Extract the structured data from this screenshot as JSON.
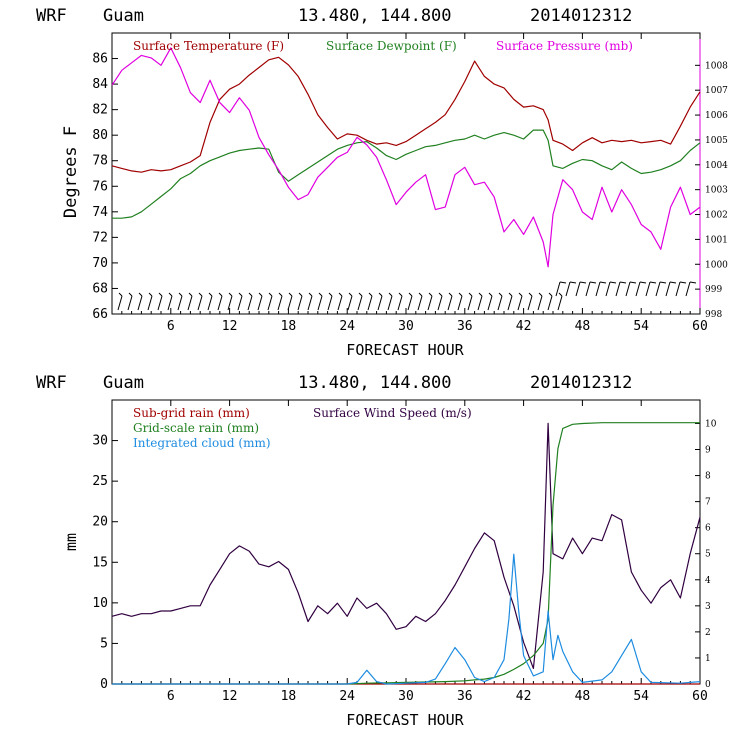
{
  "chart_data": [
    {
      "type": "line",
      "header": {
        "model": "WRF",
        "location": "Guam",
        "coords": "13.480, 144.800",
        "run": "2014012312"
      },
      "xlabel": "FORECAST HOUR",
      "ylabel": "Degrees F",
      "xlim": [
        0,
        60
      ],
      "ylim": [
        66,
        88
      ],
      "y2lim": [
        998,
        1009.3
      ],
      "x_ticks": [
        6,
        12,
        18,
        24,
        30,
        36,
        42,
        48,
        54,
        60
      ],
      "y_ticks": [
        66,
        68,
        70,
        72,
        74,
        76,
        78,
        80,
        82,
        84,
        86
      ],
      "y2_ticks": [
        998,
        999,
        1000,
        1001,
        1002,
        1003,
        1004,
        1005,
        1006,
        1007,
        1008
      ],
      "series": [
        {
          "name": "Surface Temperature (F)",
          "color": "#a00000",
          "axis": "left",
          "x": [
            0,
            1,
            2,
            3,
            4,
            5,
            6,
            7,
            8,
            9,
            10,
            11,
            12,
            13,
            14,
            15,
            16,
            17,
            18,
            19,
            20,
            21,
            22,
            23,
            24,
            25,
            26,
            27,
            28,
            29,
            30,
            31,
            32,
            33,
            34,
            35,
            36,
            37,
            38,
            39,
            40,
            41,
            42,
            43,
            44,
            44.5,
            45,
            46,
            47,
            48,
            49,
            50,
            51,
            52,
            53,
            54,
            55,
            56,
            57,
            58,
            59,
            60
          ],
          "y": [
            77.6,
            77.4,
            77.2,
            77.1,
            77.3,
            77.2,
            77.3,
            77.6,
            77.9,
            78.4,
            81.0,
            82.8,
            83.6,
            84.0,
            84.7,
            85.3,
            85.9,
            86.1,
            85.5,
            84.6,
            83.2,
            81.6,
            80.6,
            79.7,
            80.1,
            80.0,
            79.6,
            79.3,
            79.4,
            79.2,
            79.5,
            80.0,
            80.5,
            81.0,
            81.6,
            82.8,
            84.2,
            85.8,
            84.6,
            84.0,
            83.7,
            82.8,
            82.2,
            82.3,
            82.0,
            81.2,
            79.6,
            79.3,
            78.8,
            79.4,
            79.8,
            79.4,
            79.6,
            79.5,
            79.6,
            79.4,
            79.5,
            79.6,
            79.3,
            80.7,
            82.2,
            83.4
          ]
        },
        {
          "name": "Surface Dewpoint (F)",
          "color": "#208020",
          "axis": "left",
          "x": [
            0,
            1,
            2,
            3,
            4,
            5,
            6,
            7,
            8,
            9,
            10,
            11,
            12,
            13,
            14,
            15,
            16,
            17,
            18,
            19,
            20,
            21,
            22,
            23,
            24,
            25,
            26,
            27,
            28,
            29,
            30,
            31,
            32,
            33,
            34,
            35,
            36,
            37,
            38,
            39,
            40,
            41,
            42,
            43,
            44,
            44.5,
            45,
            46,
            47,
            48,
            49,
            50,
            51,
            52,
            53,
            54,
            55,
            56,
            57,
            58,
            59,
            60
          ],
          "y": [
            73.5,
            73.5,
            73.6,
            74.0,
            74.6,
            75.2,
            75.8,
            76.6,
            77.0,
            77.6,
            78.0,
            78.3,
            78.6,
            78.8,
            78.9,
            79.0,
            78.9,
            77.1,
            76.4,
            76.9,
            77.4,
            77.9,
            78.4,
            78.9,
            79.2,
            79.4,
            79.5,
            79.0,
            78.4,
            78.1,
            78.5,
            78.8,
            79.1,
            79.2,
            79.4,
            79.6,
            79.7,
            80.0,
            79.7,
            80.0,
            80.2,
            80.0,
            79.7,
            80.4,
            80.4,
            79.6,
            77.6,
            77.4,
            77.8,
            78.1,
            78.0,
            77.6,
            77.3,
            77.9,
            77.4,
            77.0,
            77.1,
            77.3,
            77.6,
            78.0,
            78.8,
            79.4
          ]
        },
        {
          "name": "Surface Pressure (mb)",
          "color": "#e000e0",
          "axis": "right",
          "x": [
            0,
            1,
            2,
            3,
            4,
            5,
            6,
            7,
            8,
            9,
            10,
            11,
            12,
            13,
            14,
            15,
            16,
            17,
            18,
            19,
            20,
            21,
            22,
            23,
            24,
            25,
            26,
            27,
            28,
            29,
            30,
            31,
            32,
            33,
            34,
            35,
            36,
            37,
            38,
            39,
            40,
            41,
            42,
            43,
            44,
            44.5,
            45,
            46,
            47,
            48,
            49,
            50,
            51,
            52,
            53,
            54,
            55,
            56,
            57,
            58,
            59,
            60
          ],
          "y": [
            1007.2,
            1007.8,
            1008.1,
            1008.4,
            1008.3,
            1008.0,
            1008.7,
            1007.9,
            1006.9,
            1006.5,
            1007.4,
            1006.5,
            1006.1,
            1006.7,
            1006.2,
            1005.1,
            1004.4,
            1003.8,
            1003.1,
            1002.6,
            1002.8,
            1003.5,
            1003.9,
            1004.3,
            1004.5,
            1005.1,
            1004.8,
            1004.3,
            1003.4,
            1002.4,
            1002.9,
            1003.3,
            1003.6,
            1002.2,
            1002.3,
            1003.6,
            1003.9,
            1003.2,
            1003.3,
            1002.7,
            1001.3,
            1001.8,
            1001.2,
            1001.9,
            1000.9,
            999.9,
            1002.0,
            1003.4,
            1003.0,
            1002.1,
            1001.8,
            1003.1,
            1002.1,
            1003.0,
            1002.4,
            1001.6,
            1001.3,
            1000.6,
            1002.3,
            1003.1,
            1002.0,
            1002.3
          ]
        }
      ]
    },
    {
      "type": "line",
      "header": {
        "model": "WRF",
        "location": "Guam",
        "coords": "13.480, 144.800",
        "run": "2014012312"
      },
      "xlabel": "FORECAST HOUR",
      "ylabel": "mm",
      "xlim": [
        0,
        60
      ],
      "ylim": [
        0,
        35
      ],
      "y2lim": [
        0,
        10.9
      ],
      "x_ticks": [
        6,
        12,
        18,
        24,
        30,
        36,
        42,
        48,
        54,
        60
      ],
      "y_ticks": [
        0,
        5,
        10,
        15,
        20,
        25,
        30
      ],
      "y2_ticks": [
        0,
        1,
        2,
        3,
        4,
        5,
        6,
        7,
        8,
        9,
        10
      ],
      "series": [
        {
          "name": "Sub-grid rain (mm)",
          "color": "#a00000",
          "axis": "left",
          "x": [
            0,
            60
          ],
          "y": [
            0,
            0
          ]
        },
        {
          "name": "Surface Wind Speed (m/s)",
          "color": "#300040",
          "axis": "right",
          "x": [
            0,
            1,
            2,
            3,
            4,
            5,
            6,
            7,
            8,
            9,
            10,
            11,
            12,
            13,
            14,
            15,
            16,
            17,
            18,
            19,
            20,
            21,
            22,
            23,
            24,
            25,
            26,
            27,
            28,
            29,
            30,
            31,
            32,
            33,
            34,
            35,
            36,
            37,
            38,
            39,
            40,
            41,
            42,
            43,
            44,
            44.5,
            45,
            46,
            47,
            48,
            49,
            50,
            51,
            52,
            53,
            54,
            55,
            56,
            57,
            58,
            59,
            60
          ],
          "y": [
            2.6,
            2.7,
            2.6,
            2.7,
            2.7,
            2.8,
            2.8,
            2.9,
            3.0,
            3.0,
            3.8,
            4.4,
            5.0,
            5.3,
            5.1,
            4.6,
            4.5,
            4.7,
            4.4,
            3.5,
            2.4,
            3.0,
            2.7,
            3.1,
            2.6,
            3.3,
            2.9,
            3.1,
            2.7,
            2.1,
            2.2,
            2.6,
            2.4,
            2.7,
            3.2,
            3.8,
            4.5,
            5.2,
            5.8,
            5.5,
            4.1,
            3.0,
            1.6,
            0.6,
            4.3,
            10.0,
            5.0,
            4.8,
            5.6,
            5.0,
            5.6,
            5.5,
            6.5,
            6.3,
            4.3,
            3.6,
            3.1,
            3.7,
            4.0,
            3.3,
            5.0,
            6.4
          ]
        },
        {
          "name": "Grid-scale rain (mm)",
          "color": "#208020",
          "axis": "left",
          "x": [
            0,
            24,
            26,
            28,
            30,
            32,
            34,
            36,
            37,
            38,
            39,
            40,
            41,
            42,
            43,
            44,
            44.5,
            45,
            45.5,
            46,
            47,
            48,
            50,
            54,
            60
          ],
          "y": [
            0,
            0,
            0.1,
            0.15,
            0.2,
            0.25,
            0.3,
            0.4,
            0.5,
            0.6,
            0.8,
            1.2,
            1.8,
            2.5,
            3.5,
            5.0,
            8.0,
            22.0,
            29.0,
            31.5,
            32.0,
            32.1,
            32.2,
            32.2,
            32.2
          ]
        },
        {
          "name": "Integrated cloud (mm)",
          "color": "#1e8ce0",
          "axis": "left",
          "x": [
            0,
            24,
            25,
            26,
            27,
            28,
            30,
            32,
            33,
            34,
            35,
            36,
            37,
            38,
            39,
            40,
            40.5,
            41,
            41.5,
            42,
            43,
            44,
            44.5,
            45,
            45.5,
            46,
            47,
            48,
            50,
            51,
            52,
            53,
            54,
            55,
            58,
            60
          ],
          "y": [
            0,
            0,
            0.2,
            1.7,
            0.3,
            0,
            0.1,
            0.2,
            0.6,
            2.5,
            4.5,
            3.0,
            0.8,
            0.3,
            0.8,
            3.0,
            8.0,
            16.0,
            9.0,
            3.5,
            1.0,
            1.5,
            9.0,
            3.0,
            6.0,
            4.0,
            1.5,
            0.2,
            0.5,
            1.5,
            3.5,
            5.5,
            1.5,
            0.2,
            0.1,
            0.3
          ]
        }
      ]
    }
  ]
}
